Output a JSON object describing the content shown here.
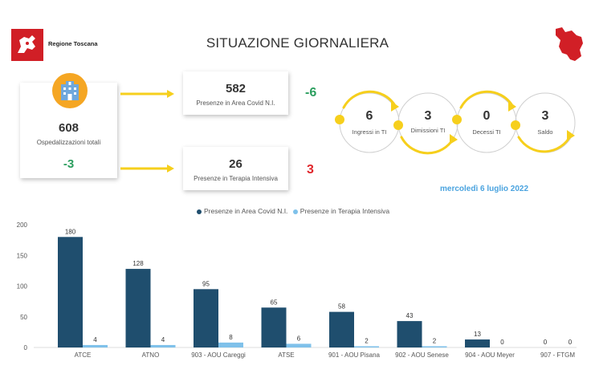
{
  "header": {
    "logo_text": "Regione Toscana",
    "title": "SITUAZIONE GIORNALIERA"
  },
  "kpi": {
    "total_value": "608",
    "total_label": "Ospedalizzazioni totali",
    "total_delta": "-3",
    "covid_value": "582",
    "covid_label": "Presenze in Area Covid N.I.",
    "covid_delta": "-6",
    "ti_value": "26",
    "ti_label": "Presenze in Terapia Intensiva",
    "ti_delta": "3"
  },
  "flow": {
    "ingressi_value": "6",
    "ingressi_label": "Ingressi in TI",
    "dimissioni_value": "3",
    "dimissioni_label": "Dimissioni TI",
    "decessi_value": "0",
    "decessi_label": "Decessi TI",
    "saldo_value": "3",
    "saldo_label": "Saldo"
  },
  "date_text": "mercoledì 6 luglio 2022",
  "colors": {
    "series_covid": "#1f4e6e",
    "series_ti": "#7fc1ea",
    "arrow": "#f6cf1c",
    "positive": "#2b9e5e",
    "negative": "#e0262b",
    "date": "#4aa3df"
  },
  "chart_data": {
    "type": "bar",
    "categories": [
      "ATCE",
      "ATNO",
      "903 - AOU Careggi",
      "ATSE",
      "901 - AOU Pisana",
      "902 - AOU Senese",
      "904 - AOU Meyer",
      "907 - FTGM"
    ],
    "series": [
      {
        "name": "Presenze in Area Covid N.I.",
        "values": [
          180,
          128,
          95,
          65,
          58,
          43,
          13,
          0
        ]
      },
      {
        "name": "Presenze in Terapia Intensiva",
        "values": [
          4,
          4,
          8,
          6,
          2,
          2,
          0,
          0
        ]
      }
    ],
    "yticks": [
      0,
      50,
      100,
      150,
      200
    ],
    "ylim": [
      0,
      200
    ],
    "legend_position": "top-center",
    "grid": false
  }
}
